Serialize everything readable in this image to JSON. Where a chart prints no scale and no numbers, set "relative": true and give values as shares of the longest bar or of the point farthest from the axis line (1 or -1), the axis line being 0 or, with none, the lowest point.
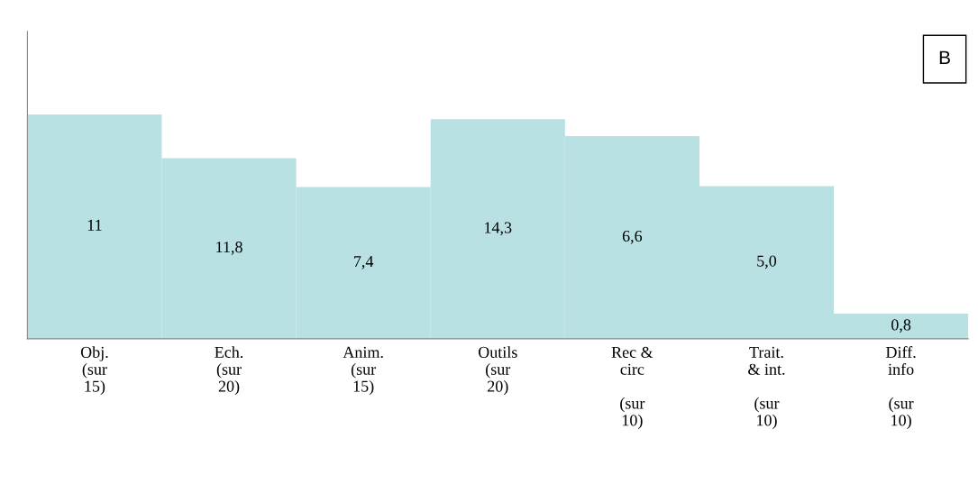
{
  "chart_data": {
    "type": "bar",
    "relative": true,
    "categories": [
      "Obj.\n(sur\n15)",
      "Ech.\n(sur\n20)",
      "Anim.\n(sur\n15)",
      "Outils\n(sur\n20)",
      "Rec &\ncirc\n\n(sur\n10)",
      "Trait.\n& int.\n\n(sur\n10)",
      "Diff.\ninfo\n\n(sur\n10)"
    ],
    "values": [
      1,
      0.805,
      0.677,
      0.979,
      0.903,
      0.681,
      0.112
    ],
    "color": "#b9e0e3",
    "annotations": [
      "B",
      "11",
      "11,8",
      "7,4",
      "14,3",
      "6,6",
      "5,0",
      "0,8"
    ],
    "grid": false,
    "legend": false
  }
}
